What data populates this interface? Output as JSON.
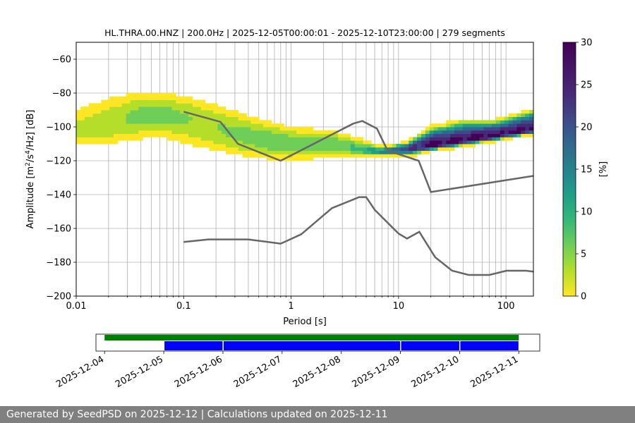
{
  "chart_data": {
    "type": "heatmap",
    "title": "HL.THRA.00.HNZ | 200.0Hz | 2025-12-05T00:00:01 - 2025-12-10T23:00:00 | 279 segments",
    "xlabel": "Period [s]",
    "ylabel_parts": [
      "Amplitude [m",
      "2",
      "/s",
      "4",
      "/Hz] [dB]"
    ],
    "x_scale": "log",
    "xlim": [
      0.01,
      180
    ],
    "ylim": [
      -200,
      -50
    ],
    "grid": true,
    "x_ticks": [
      {
        "value": 0.01,
        "label": "0.01"
      },
      {
        "value": 0.1,
        "label": "0.1"
      },
      {
        "value": 1,
        "label": "1"
      },
      {
        "value": 10,
        "label": "10"
      },
      {
        "value": 100,
        "label": "100"
      }
    ],
    "y_ticks": [
      {
        "value": -60,
        "label": "−60"
      },
      {
        "value": -80,
        "label": "−80"
      },
      {
        "value": -100,
        "label": "−100"
      },
      {
        "value": -120,
        "label": "−120"
      },
      {
        "value": -140,
        "label": "−140"
      },
      {
        "value": -160,
        "label": "−160"
      },
      {
        "value": -180,
        "label": "−180"
      },
      {
        "value": -200,
        "label": "−200"
      }
    ],
    "colorbar": {
      "label": "[%]",
      "range": [
        0,
        30
      ],
      "ticks": [
        {
          "value": 0,
          "label": "0"
        },
        {
          "value": 5,
          "label": "5"
        },
        {
          "value": 10,
          "label": "10"
        },
        {
          "value": 15,
          "label": "15"
        },
        {
          "value": 20,
          "label": "20"
        },
        {
          "value": 25,
          "label": "25"
        },
        {
          "value": 30,
          "label": "30"
        }
      ],
      "colors": [
        "#fde725",
        "#b5de2b",
        "#6ece58",
        "#35b779",
        "#1f9e89",
        "#26828e",
        "#31688e",
        "#3e4989",
        "#482878",
        "#440154"
      ]
    },
    "psd_band": [
      {
        "x": 0.01,
        "center": -103,
        "min": -110,
        "max": -91,
        "peak": 4
      },
      {
        "x": 0.02,
        "center": -99,
        "min": -109,
        "max": -84,
        "peak": 5
      },
      {
        "x": 0.04,
        "center": -93,
        "min": -106,
        "max": -80,
        "peak": 7
      },
      {
        "x": 0.07,
        "center": -92,
        "min": -106,
        "max": -81,
        "peak": 7
      },
      {
        "x": 0.12,
        "center": -95,
        "min": -110,
        "max": -84,
        "peak": 6
      },
      {
        "x": 0.2,
        "center": -100,
        "min": -113,
        "max": -88,
        "peak": 6
      },
      {
        "x": 0.35,
        "center": -105,
        "min": -116,
        "max": -93,
        "peak": 7
      },
      {
        "x": 0.6,
        "center": -108,
        "min": -118,
        "max": -97,
        "peak": 8
      },
      {
        "x": 1.0,
        "center": -110,
        "min": -119,
        "max": -101,
        "peak": 8
      },
      {
        "x": 1.6,
        "center": -109,
        "min": -118,
        "max": -102,
        "peak": 8
      },
      {
        "x": 2.5,
        "center": -110,
        "min": -117,
        "max": -103,
        "peak": 8
      },
      {
        "x": 4,
        "center": -113,
        "min": -117,
        "max": -107,
        "peak": 10
      },
      {
        "x": 7,
        "center": -115,
        "min": -117,
        "max": -112,
        "peak": 16
      },
      {
        "x": 12,
        "center": -113,
        "min": -117,
        "max": -109,
        "peak": 24
      },
      {
        "x": 20,
        "center": -111,
        "min": -114,
        "max": -100,
        "peak": 28
      },
      {
        "x": 40,
        "center": -108,
        "min": -111,
        "max": -96,
        "peak": 28
      },
      {
        "x": 80,
        "center": -105,
        "min": -108,
        "max": -96,
        "peak": 28
      },
      {
        "x": 180,
        "center": -101,
        "min": -104,
        "max": -90,
        "peak": 28
      }
    ],
    "high_noise_model": [
      [
        0.1,
        -91
      ],
      [
        0.22,
        -97
      ],
      [
        0.32,
        -110
      ],
      [
        0.8,
        -120
      ],
      [
        3.8,
        -98
      ],
      [
        4.6,
        -96.5
      ],
      [
        6.3,
        -101
      ],
      [
        7.9,
        -114
      ],
      [
        15.4,
        -120
      ],
      [
        20,
        -138.5
      ],
      [
        354,
        -126
      ]
    ],
    "low_noise_model": [
      [
        0.1,
        -168
      ],
      [
        0.17,
        -166.5
      ],
      [
        0.4,
        -166.5
      ],
      [
        0.8,
        -169
      ],
      [
        1.24,
        -163.5
      ],
      [
        2.4,
        -148
      ],
      [
        4.3,
        -141.5
      ],
      [
        5,
        -141.5
      ],
      [
        6,
        -149
      ],
      [
        10,
        -163
      ],
      [
        12,
        -166
      ],
      [
        15.6,
        -162
      ],
      [
        21.9,
        -177
      ],
      [
        31.6,
        -185
      ],
      [
        45,
        -187.5
      ],
      [
        70,
        -187.5
      ],
      [
        101,
        -185
      ],
      [
        154,
        -185
      ],
      [
        328,
        -187.5
      ]
    ],
    "timeline": {
      "date_ticks": [
        "2025-12-04",
        "2025-12-05",
        "2025-12-06",
        "2025-12-07",
        "2025-12-08",
        "2025-12-09",
        "2025-12-10",
        "2025-12-11"
      ],
      "range": [
        "2025-12-03T20:30",
        "2025-12-11T08:30"
      ],
      "available": [
        [
          "2025-12-04T00:00",
          "2025-12-11T00:00"
        ]
      ],
      "processed": [
        [
          "2025-12-05T00:00",
          "2025-12-06T00:00"
        ],
        [
          "2025-12-06T00:00",
          "2025-12-09T00:00"
        ],
        [
          "2025-12-09T00:00",
          "2025-12-10T00:00"
        ],
        [
          "2025-12-10T00:00",
          "2025-12-11T00:00"
        ]
      ],
      "available_color": "#008000",
      "processed_color": "#0000ff"
    }
  },
  "footer_text": "Generated by SeedPSD on 2025-12-12 | Calculations updated on 2025-12-11"
}
